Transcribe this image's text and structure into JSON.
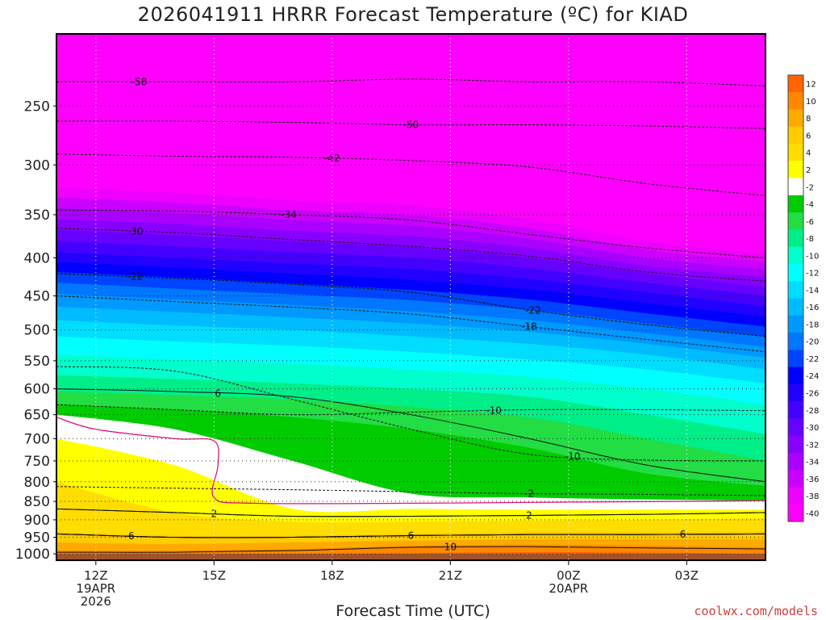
{
  "title": "2026041911 HRRR Forecast Temperature (ºC) for KIAD",
  "x_axis_title": "Forecast Time (UTC)",
  "credit": "coolwx.com/models",
  "chart_data": {
    "type": "heatmap",
    "title": "2026041911 HRRR Forecast Temperature (ºC) for KIAD",
    "xlabel": "Forecast Time (UTC)",
    "ylabel": "",
    "y_scale": "log-pressure (hPa), inverted",
    "x_ticks": [
      {
        "h": 12,
        "lines": [
          "12Z",
          "19APR",
          "2026"
        ]
      },
      {
        "h": 15,
        "lines": [
          "15Z"
        ]
      },
      {
        "h": 18,
        "lines": [
          "18Z"
        ]
      },
      {
        "h": 21,
        "lines": [
          "21Z"
        ]
      },
      {
        "h": 24,
        "lines": [
          "00Z",
          "20APR"
        ]
      },
      {
        "h": 27,
        "lines": [
          "03Z"
        ]
      }
    ],
    "x_range_hours": [
      11,
      29
    ],
    "y_ticks": [
      250,
      300,
      350,
      400,
      450,
      500,
      550,
      600,
      650,
      700,
      750,
      800,
      850,
      900,
      950,
      1000
    ],
    "y_range_hpa": [
      200,
      1020
    ],
    "grid": true,
    "colorbar": {
      "ticks": [
        12,
        10,
        8,
        6,
        4,
        2,
        -2,
        -4,
        -6,
        -8,
        -10,
        -12,
        -14,
        -16,
        -18,
        -20,
        -22,
        -24,
        -26,
        -28,
        -30,
        -32,
        -34,
        -36,
        -38,
        -40
      ],
      "colors": [
        "#ff6600",
        "#ff8800",
        "#ffaa00",
        "#ffcc00",
        "#ffdd00",
        "#ffff00",
        "#ffffff",
        "#00cc00",
        "#22dd44",
        "#00ee88",
        "#00ffcc",
        "#00ffff",
        "#00ddff",
        "#00bbff",
        "#0099ff",
        "#0077ff",
        "#0044ff",
        "#0000ff",
        "#2200ff",
        "#4400ff",
        "#6600ff",
        "#8800ff",
        "#aa00ff",
        "#cc00ff",
        "#ee00ff",
        "#ff00ff"
      ]
    },
    "bands": [
      {
        "t": "-58",
        "color": "#ff00ff",
        "p": [
          200,
          200,
          200,
          200,
          200,
          200,
          200
        ]
      },
      {
        "t": "-40",
        "color": "#ff00ff",
        "p": [
          313,
          318,
          325,
          330,
          345,
          370,
          385
        ]
      },
      {
        "t": "-38",
        "color": "#ee00ff",
        "p": [
          322,
          327,
          335,
          340,
          355,
          380,
          395
        ]
      },
      {
        "t": "-36",
        "color": "#cc00ff",
        "p": [
          332,
          337,
          345,
          350,
          365,
          390,
          405
        ]
      },
      {
        "t": "-34",
        "color": "#aa00ff",
        "p": [
          343,
          348,
          356,
          362,
          377,
          400,
          415
        ]
      },
      {
        "t": "-32",
        "color": "#8800ff",
        "p": [
          355,
          360,
          368,
          374,
          388,
          410,
          425
        ]
      },
      {
        "t": "-30",
        "color": "#6600ff",
        "p": [
          367,
          373,
          380,
          387,
          400,
          420,
          438
        ]
      },
      {
        "t": "-28",
        "color": "#4400ff",
        "p": [
          380,
          386,
          393,
          400,
          413,
          432,
          450
        ]
      },
      {
        "t": "-26",
        "color": "#2200ff",
        "p": [
          393,
          400,
          407,
          414,
          427,
          445,
          465
        ]
      },
      {
        "t": "-24",
        "color": "#0000ff",
        "p": [
          405,
          412,
          420,
          428,
          441,
          460,
          480
        ]
      },
      {
        "t": "-22",
        "color": "#0044ff",
        "p": [
          418,
          425,
          433,
          442,
          455,
          475,
          495
        ]
      },
      {
        "t": "-20",
        "color": "#0077ff",
        "p": [
          432,
          440,
          448,
          456,
          470,
          490,
          510
        ]
      },
      {
        "t": "-18",
        "color": "#0099ff",
        "p": [
          447,
          455,
          463,
          472,
          485,
          505,
          527
        ]
      },
      {
        "t": "-16",
        "color": "#00bbff",
        "p": [
          465,
          473,
          481,
          490,
          503,
          522,
          545
        ]
      },
      {
        "t": "-14",
        "color": "#00ddff",
        "p": [
          485,
          493,
          500,
          510,
          522,
          540,
          565
        ]
      },
      {
        "t": "-12",
        "color": "#00ffff",
        "p": [
          510,
          518,
          525,
          535,
          548,
          565,
          590
        ]
      },
      {
        "t": "-10",
        "color": "#00ffcc",
        "p": [
          540,
          548,
          555,
          565,
          578,
          600,
          630
        ]
      },
      {
        "t": "-8",
        "color": "#00ee88",
        "p": [
          575,
          582,
          590,
          600,
          615,
          650,
          690
        ]
      },
      {
        "t": "-6",
        "color": "#22dd44",
        "p": [
          605,
          612,
          620,
          635,
          655,
          700,
          750
        ]
      },
      {
        "t": "-4",
        "color": "#00cc00",
        "p": [
          630,
          640,
          655,
          680,
          720,
          780,
          810
        ]
      },
      {
        "t": "-2",
        "color": "#ffffff",
        "p": [
          650,
          680,
          750,
          830,
          840,
          845,
          848
        ]
      },
      {
        "t": "2",
        "color": "#ffff00",
        "p": [
          700,
          760,
          870,
          870,
          872,
          872,
          872
        ]
      },
      {
        "t": "4",
        "color": "#ffdd00",
        "p": [
          800,
          880,
          905,
          905,
          902,
          900,
          895
        ]
      },
      {
        "t": "6",
        "color": "#ffcc00",
        "p": [
          935,
          945,
          945,
          940,
          935,
          935,
          933
        ]
      },
      {
        "t": "8",
        "color": "#ffaa00",
        "p": [
          965,
          970,
          965,
          960,
          955,
          955,
          955
        ]
      },
      {
        "t": "10",
        "color": "#ff8800",
        "p": [
          990,
          990,
          985,
          975,
          972,
          975,
          980
        ]
      },
      {
        "t": "12",
        "color": "#ff6600",
        "p": [
          1000,
          1000,
          1000,
          998,
          995,
          996,
          1000
        ]
      },
      {
        "t": "ground",
        "color": "#a0522d",
        "p": [
          1000,
          1000,
          1000,
          1000,
          1000,
          1000,
          1000
        ]
      }
    ],
    "band_x_hours": [
      11,
      14,
      17,
      20,
      23,
      26,
      29
    ],
    "contours": [
      {
        "label": "-58",
        "p": [
          232,
          232,
          232,
          230,
          232,
          232,
          235
        ],
        "lx": 13.1
      },
      {
        "label": "-50",
        "p": [
          262,
          262,
          263,
          265,
          265,
          266,
          268
        ],
        "lx": 20.0
      },
      {
        "label": "-42",
        "p": [
          290,
          292,
          293,
          296,
          302,
          318,
          330
        ],
        "lx": 18.0
      },
      {
        "label": "-34",
        "p": [
          345,
          346,
          350,
          356,
          372,
          388,
          400
        ],
        "lx": 16.9
      },
      {
        "label": "-30",
        "p": [
          365,
          370,
          378,
          386,
          398,
          418,
          430
        ],
        "lx": 13.0
      },
      {
        "label": "-22",
        "p": [
          420,
          426,
          434,
          445,
          470,
          492,
          510
        ],
        "lx": 13.0
      },
      {
        "label": "-22",
        "p": [
          420,
          426,
          434,
          445,
          470,
          492,
          510
        ],
        "lx": 23.1
      },
      {
        "label": "-18",
        "p": [
          450,
          458,
          466,
          476,
          495,
          515,
          535
        ],
        "lx": 23.0
      },
      {
        "label": "-10",
        "p": [
          560,
          568,
          620,
          680,
          735,
          748,
          750
        ],
        "lx": 24.1
      },
      {
        "label": "-10",
        "p": [
          630,
          640,
          650,
          645,
          640,
          640,
          642
        ],
        "lx": 22.1
      },
      {
        "label": "6",
        "p": [
          600,
          605,
          615,
          650,
          700,
          760,
          800
        ],
        "lx": 15.1
      },
      {
        "label": "-2",
        "p": [
          812,
          816,
          820,
          825,
          830,
          832,
          835
        ],
        "lx": 23.0
      },
      {
        "label": "2",
        "p": [
          870,
          880,
          890,
          890,
          888,
          885,
          880
        ],
        "lx": 15.0
      },
      {
        "label": "2",
        "p": [
          870,
          880,
          890,
          890,
          888,
          885,
          880
        ],
        "lx": 23.0
      },
      {
        "label": "6",
        "p": [
          940,
          950,
          950,
          945,
          942,
          942,
          940
        ],
        "lx": 12.9
      },
      {
        "label": "6",
        "p": [
          940,
          950,
          950,
          945,
          942,
          942,
          940
        ],
        "lx": 20.0
      },
      {
        "label": "6",
        "p": [
          940,
          950,
          950,
          945,
          942,
          942,
          940
        ],
        "lx": 26.9
      },
      {
        "label": "10",
        "p": [
          995,
          995,
          990,
          980,
          978,
          982,
          985
        ],
        "lx": 21.0
      }
    ],
    "freezing_line": [
      [
        11,
        655
      ],
      [
        12,
        680
      ],
      [
        14,
        700
      ],
      [
        15,
        705
      ],
      [
        15.1,
        760
      ],
      [
        15,
        840
      ],
      [
        16,
        855
      ],
      [
        20,
        855
      ],
      [
        24,
        852
      ],
      [
        27,
        850
      ],
      [
        29,
        848
      ]
    ]
  }
}
